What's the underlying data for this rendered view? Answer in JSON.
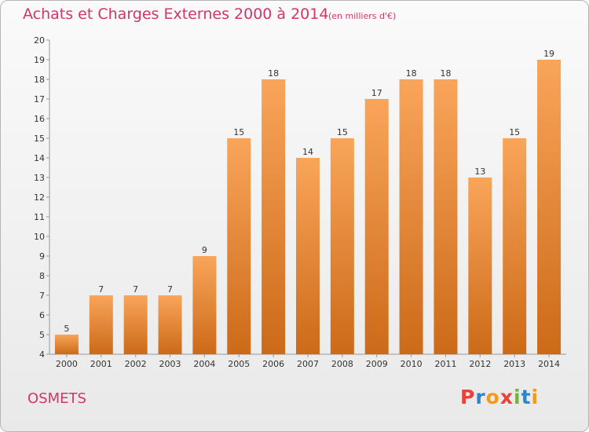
{
  "header": {
    "title": "Achats et Charges Externes 2000 à 2014",
    "subtitle": "(en milliers d'€)"
  },
  "footer": {
    "location": "OSMETS",
    "brand": "Proxiti",
    "brand_letters": [
      "P",
      "r",
      "o",
      "x",
      "i",
      "t",
      "i"
    ],
    "brand_colors": [
      "#e8433b",
      "#2e86c9",
      "#f29a1d",
      "#e8433b",
      "#72b43c",
      "#2e86c9",
      "#f29a1d"
    ]
  },
  "colors": {
    "bar_light": "#f9a55a",
    "bar_dark": "#cc6a18",
    "axis": "#999999",
    "text": "#333333",
    "accent": "#d1356a"
  },
  "chart_data": {
    "type": "bar",
    "title": "Achats et Charges Externes 2000 à 2014",
    "subtitle": "(en milliers d'€)",
    "xlabel": "",
    "ylabel": "",
    "categories": [
      "2000",
      "2001",
      "2002",
      "2003",
      "2004",
      "2005",
      "2006",
      "2007",
      "2008",
      "2009",
      "2010",
      "2011",
      "2012",
      "2013",
      "2014"
    ],
    "values": [
      5,
      7,
      7,
      7,
      9,
      15,
      18,
      14,
      15,
      17,
      18,
      18,
      13,
      15,
      19
    ],
    "data_labels": [
      "5",
      "7",
      "7",
      "7",
      "9",
      "15",
      "18",
      "14",
      "15",
      "17",
      "18",
      "18",
      "13",
      "15",
      "19"
    ],
    "y_ticks": [
      "4",
      "5",
      "6",
      "7",
      "8",
      "9",
      "10",
      "11",
      "12",
      "13",
      "14",
      "15",
      "16",
      "17",
      "18",
      "19",
      "20"
    ],
    "ylim": [
      4,
      20
    ],
    "grid": false,
    "legend": "none"
  }
}
